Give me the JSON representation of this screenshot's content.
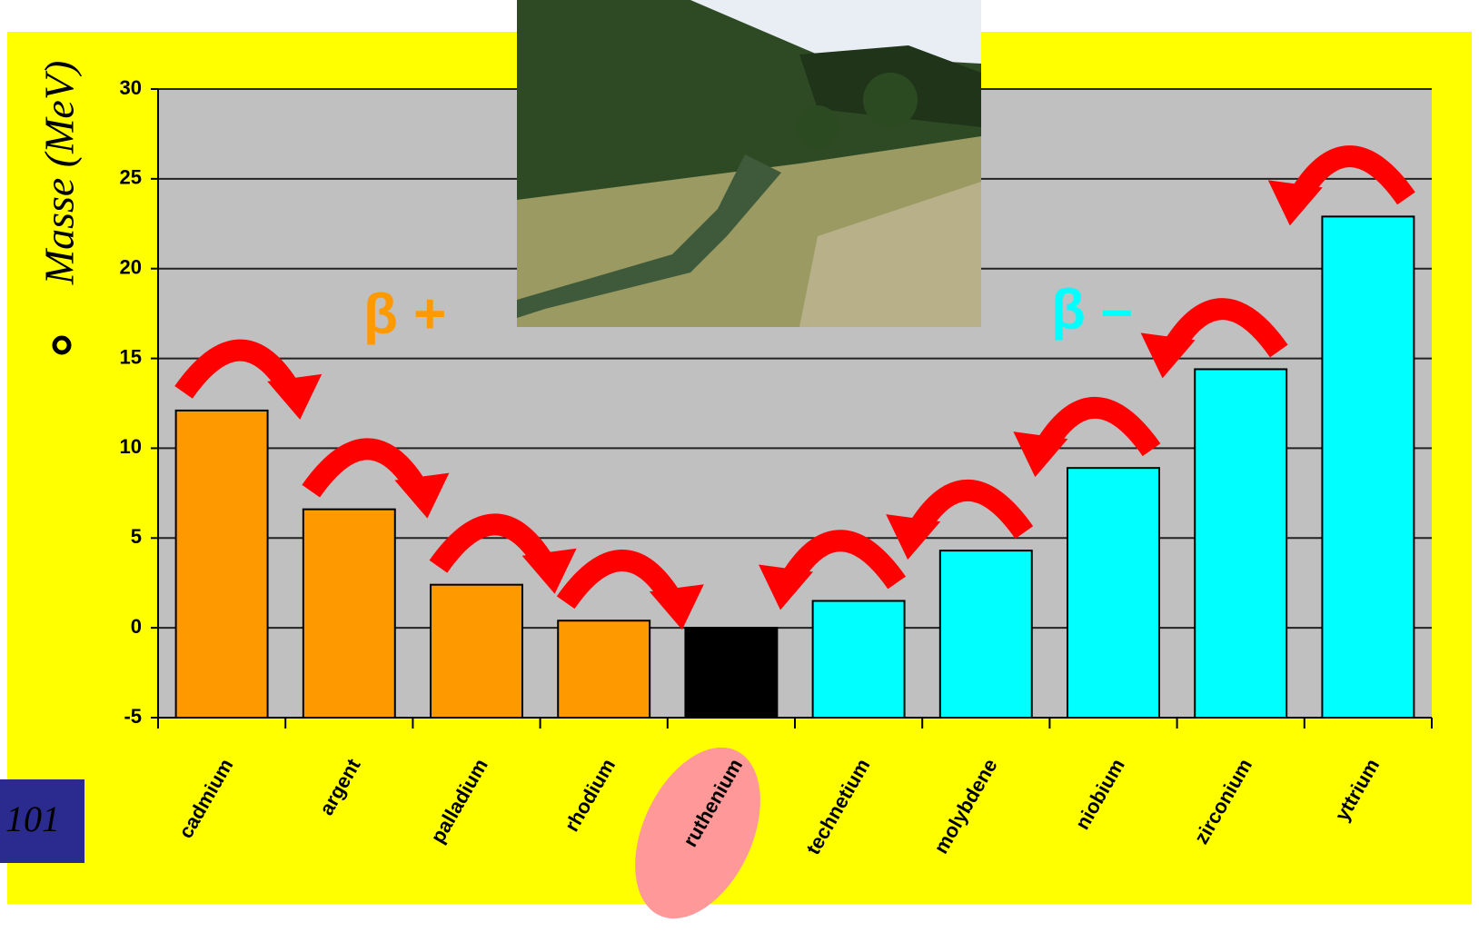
{
  "chart_data": {
    "type": "bar",
    "y_label": "Masse (MeV)",
    "annotations": [
      "β +",
      "β –"
    ],
    "corner_label": "101",
    "categories": [
      "cadmium",
      "argent",
      "palladium",
      "rhodium",
      "ruthenium",
      "technetium",
      "molybdene",
      "niobium",
      "zirconium",
      "yttrium"
    ],
    "values": [
      12.1,
      6.6,
      2.4,
      0.4,
      0,
      1.5,
      4.3,
      8.9,
      14.4,
      22.9
    ],
    "colors": [
      "#ff9900",
      "#ff9900",
      "#ff9900",
      "#ff9900",
      "#000000",
      "#00ffff",
      "#00ffff",
      "#00ffff",
      "#00ffff",
      "#00ffff"
    ],
    "annotation_colors": [
      "#ff9900",
      "#00ffff"
    ],
    "ylim": [
      -5,
      30
    ],
    "yticks": [
      -5,
      0,
      5,
      10,
      15,
      20,
      25,
      30
    ],
    "grid": true
  }
}
